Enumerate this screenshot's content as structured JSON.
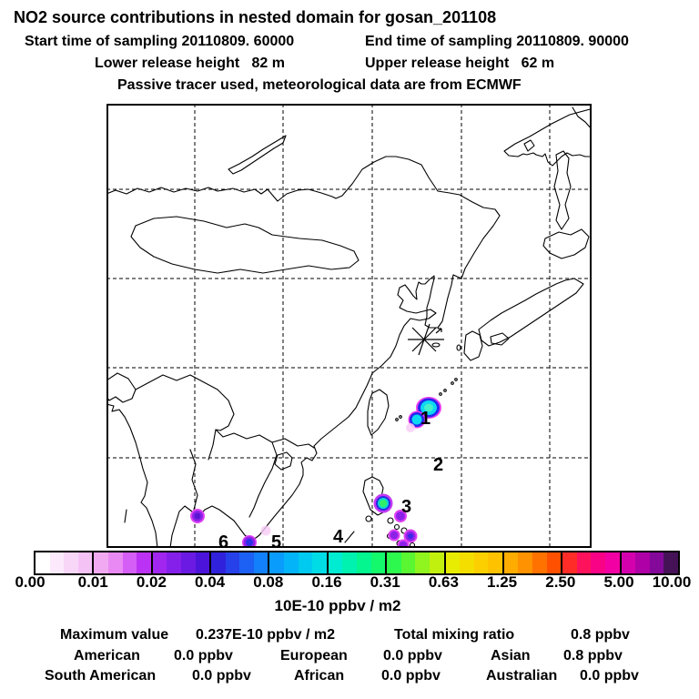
{
  "header": {
    "title": "NO2 source contributions in nested domain for gosan_201108",
    "start_time": "Start time of sampling 20110809. 60000",
    "end_time": "End time of sampling 20110809. 90000",
    "lower_release": "Lower release height   82 m",
    "upper_release": "Upper release height   62 m",
    "tracer_line": "Passive tracer used, meteorological data are from ECMWF"
  },
  "map": {
    "labels": [
      {
        "text": "1"
      },
      {
        "text": "2"
      },
      {
        "text": "3"
      },
      {
        "text": "4"
      },
      {
        "text": "5"
      },
      {
        "text": "6"
      }
    ],
    "receptor_marker": "gosan-receptor-star"
  },
  "colorbar": {
    "ticks": [
      "0.00",
      "0.01",
      "0.02",
      "0.04",
      "0.08",
      "0.16",
      "0.31",
      "0.63",
      "1.25",
      "2.50",
      "5.00",
      "10.00"
    ],
    "unit": "10E-10 ppbv / m2",
    "segments": [
      [
        "#ffffff",
        "#fceafc",
        "#f8d6f8",
        "#f5c2f6"
      ],
      [
        "#f1aaf2",
        "#e98af4",
        "#d55ef6",
        "#bc32f4"
      ],
      [
        "#a026f0",
        "#8520ea",
        "#6a1ae2",
        "#4c14da"
      ],
      [
        "#3022dc",
        "#2640ea",
        "#1c60f4",
        "#1280fa"
      ],
      [
        "#0a9cfc",
        "#04b4f8",
        "#00caf0",
        "#00dce6"
      ],
      [
        "#00ecd2",
        "#00f2b0",
        "#04f68e",
        "#14f86c"
      ],
      [
        "#2cf84e",
        "#5af632",
        "#90f41e",
        "#c2f00e"
      ],
      [
        "#e8ec02",
        "#f4de00",
        "#fcd000",
        "#ffc200"
      ],
      [
        "#ffac00",
        "#ff9200",
        "#ff7200",
        "#ff5000"
      ],
      [
        "#ff2c28",
        "#ff125c",
        "#fa0286",
        "#f200a4"
      ],
      [
        "#d400ae",
        "#ae00a6",
        "#84089a",
        "#461257"
      ]
    ]
  },
  "stats": {
    "r1c1": "Maximum value",
    "r1c2": "0.237E-10 ppbv / m2",
    "r1c3": "Total mixing ratio",
    "r1c4": "0.8 ppbv",
    "r2c1": "American",
    "r2c2": "0.0 ppbv",
    "r2c3": "European",
    "r2c4": "0.0 ppbv",
    "r2c5": "Asian",
    "r2c6": "0.8 ppbv",
    "r3c1": "South American",
    "r3c2": "0.0 ppbv",
    "r3c3": "African",
    "r3c4": "0.0 ppbv",
    "r3c5": "Australian",
    "r3c6": "0.0 ppbv"
  },
  "chart_data": {
    "type": "heatmap",
    "title": "NO2 source contributions in nested domain for gosan_201108",
    "subtitle_lines": [
      "Start time of sampling 20110809. 60000  End time of sampling 20110809. 90000",
      "Lower release height 82 m  Upper release height 62 m",
      "Passive tracer used, meteorological data are from ECMWF"
    ],
    "colorbar_unit": "10E-10 ppbv / m2",
    "colorbar_tick_values": [
      0.0,
      0.01,
      0.02,
      0.04,
      0.08,
      0.16,
      0.31,
      0.63,
      1.25,
      2.5,
      5.0,
      10.0
    ],
    "colorbar_scale": "logarithmic (factor-2 steps)",
    "maximum_value": "0.237E-10 ppbv / m2",
    "total_mixing_ratio_ppbv": 0.8,
    "source_contributions_ppbv": {
      "American": 0.0,
      "European": 0.0,
      "Asian": 0.8,
      "South American": 0.0,
      "African": 0.0,
      "Australian": 0.0
    },
    "region_markers": [
      {
        "label": "1",
        "location": "hotspot cluster east of Taiwan / Ryukyu area, peak ~0.1-0.2 of scale (cyan core, blue ring, magenta fringe)"
      },
      {
        "label": "2",
        "location": "open ocean label on 20N gridline east of Luzon, no plume"
      },
      {
        "label": "3",
        "location": "hotspot on eastern Luzon, Philippines (green-cyan core with purple ring)"
      },
      {
        "label": "4",
        "location": "ocean label west of the Philippines, no plume"
      },
      {
        "label": "5",
        "location": "weak blue-purple hotspot near Mekong delta at map bottom edge"
      },
      {
        "label": "6",
        "location": "weak purple hotspot on Gulf of Thailand coast"
      }
    ],
    "receptor": "star marker at Gosan (Jeju Island, ~33N 126E)",
    "grid": "dashed graticule every 10 degrees (100E-140E, 20N-50N visible)"
  }
}
